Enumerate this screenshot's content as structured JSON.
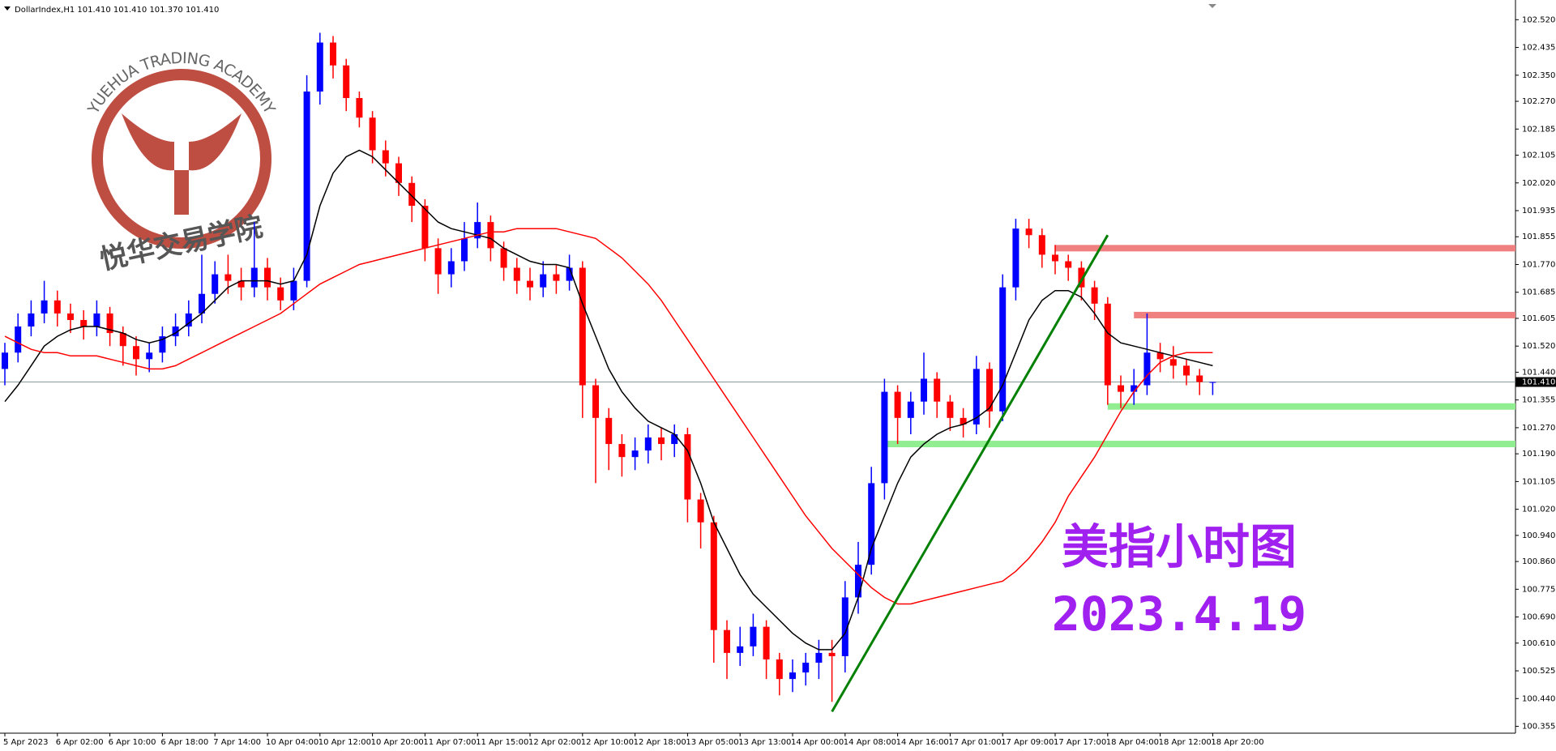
{
  "chart_data": {
    "type": "candlestick",
    "header": "DollarIndex,H1  101.410 101.410 101.370 101.410",
    "annotations": [
      "美指小时图",
      "2023.4.19"
    ],
    "logo": {
      "arc_text": "YUEHUA TRADING ACADEMY",
      "name": "悦华交易学院"
    },
    "bull_color": "#0000ff",
    "bear_color": "#ff0000",
    "categories": [
      "5 Apr 2023",
      null,
      null,
      null,
      "6 Apr 02:00",
      null,
      null,
      null,
      "6 Apr 10:00",
      null,
      null,
      null,
      "6 Apr 18:00",
      null,
      null,
      null,
      "7 Apr 14:00",
      null,
      null,
      null,
      "10 Apr 04:00",
      null,
      null,
      null,
      "10 Apr 12:00",
      null,
      null,
      null,
      "10 Apr 20:00",
      null,
      null,
      null,
      "11 Apr 07:00",
      null,
      null,
      null,
      "11 Apr 15:00",
      null,
      null,
      null,
      "12 Apr 02:00",
      null,
      null,
      null,
      "12 Apr 10:00",
      null,
      null,
      null,
      "12 Apr 18:00",
      null,
      null,
      null,
      "13 Apr 05:00",
      null,
      null,
      null,
      "13 Apr 13:00",
      null,
      null,
      null,
      "14 Apr 00:00",
      null,
      null,
      null,
      "14 Apr 08:00",
      null,
      null,
      null,
      "14 Apr 16:00",
      null,
      null,
      null,
      "17 Apr 01:00",
      null,
      null,
      null,
      "17 Apr 09:00",
      null,
      null,
      null,
      "17 Apr 17:00",
      null,
      null,
      null,
      "18 Apr 04:00",
      null,
      null,
      null,
      "18 Apr 12:00",
      null,
      null,
      null,
      "18 Apr 20:00"
    ],
    "open": [
      101.45,
      101.5,
      101.58,
      101.62,
      101.66,
      101.62,
      101.6,
      101.58,
      101.62,
      101.56,
      101.52,
      101.48,
      101.5,
      101.55,
      101.58,
      101.62,
      101.68,
      101.74,
      101.72,
      101.7,
      101.76,
      101.7,
      101.66,
      101.72,
      102.3,
      102.45,
      102.38,
      102.28,
      102.22,
      102.12,
      102.08,
      102.02,
      101.95,
      101.82,
      101.74,
      101.78,
      101.85,
      101.9,
      101.82,
      101.76,
      101.72,
      101.7,
      101.74,
      101.72,
      101.76,
      101.4,
      101.3,
      101.22,
      101.18,
      101.2,
      101.24,
      101.22,
      101.25,
      101.05,
      100.98,
      100.65,
      100.58,
      100.6,
      100.66,
      100.56,
      100.5,
      100.52,
      100.55,
      100.58,
      100.57,
      100.75,
      100.85,
      101.1,
      101.38,
      101.3,
      101.35,
      101.42,
      101.35,
      101.3,
      101.28,
      101.45,
      101.32,
      101.7,
      101.88,
      101.86,
      101.8,
      101.78,
      101.76,
      101.7,
      101.65,
      101.4,
      101.38,
      101.4,
      101.5,
      101.48,
      101.46,
      101.43,
      101.41
    ],
    "high": [
      101.53,
      101.62,
      101.66,
      101.72,
      101.69,
      101.65,
      101.63,
      101.66,
      101.64,
      101.58,
      101.55,
      101.53,
      101.58,
      101.62,
      101.66,
      101.8,
      101.78,
      101.8,
      101.76,
      101.9,
      101.79,
      101.73,
      101.76,
      102.35,
      102.48,
      102.47,
      102.4,
      102.3,
      102.24,
      102.15,
      102.1,
      102.04,
      101.97,
      101.85,
      101.82,
      101.9,
      101.96,
      101.92,
      101.84,
      101.79,
      101.76,
      101.78,
      101.77,
      101.8,
      101.78,
      101.42,
      101.33,
      101.25,
      101.24,
      101.28,
      101.27,
      101.28,
      101.27,
      101.07,
      101.0,
      100.68,
      100.66,
      100.7,
      100.68,
      100.58,
      100.56,
      100.58,
      100.62,
      100.62,
      100.8,
      100.92,
      101.15,
      101.42,
      101.4,
      101.38,
      101.5,
      101.44,
      101.37,
      101.33,
      101.49,
      101.47,
      101.74,
      101.91,
      101.91,
      101.88,
      101.83,
      101.8,
      101.78,
      101.72,
      101.67,
      101.43,
      101.45,
      101.62,
      101.53,
      101.52,
      101.48,
      101.45,
      101.41
    ],
    "low": [
      101.4,
      101.47,
      101.55,
      101.59,
      101.58,
      101.56,
      101.54,
      101.55,
      101.52,
      101.46,
      101.43,
      101.44,
      101.47,
      101.52,
      101.55,
      101.59,
      101.65,
      101.68,
      101.66,
      101.67,
      101.66,
      101.63,
      101.63,
      101.7,
      102.26,
      102.34,
      102.24,
      102.19,
      102.08,
      102.04,
      101.98,
      101.9,
      101.78,
      101.68,
      101.7,
      101.75,
      101.82,
      101.78,
      101.72,
      101.68,
      101.66,
      101.67,
      101.68,
      101.69,
      101.3,
      101.1,
      101.14,
      101.12,
      101.14,
      101.16,
      101.17,
      101.18,
      100.98,
      100.9,
      100.55,
      100.5,
      100.54,
      100.57,
      100.5,
      100.45,
      100.46,
      100.48,
      100.5,
      100.43,
      100.52,
      100.7,
      100.82,
      101.05,
      101.22,
      101.25,
      101.31,
      101.3,
      101.26,
      101.24,
      101.25,
      101.27,
      101.29,
      101.66,
      101.82,
      101.76,
      101.74,
      101.72,
      101.66,
      101.6,
      101.34,
      101.33,
      101.34,
      101.37,
      101.44,
      101.42,
      101.4,
      101.37,
      101.37
    ],
    "close": [
      101.5,
      101.58,
      101.62,
      101.66,
      101.62,
      101.6,
      101.58,
      101.62,
      101.56,
      101.52,
      101.48,
      101.5,
      101.55,
      101.58,
      101.62,
      101.68,
      101.74,
      101.72,
      101.7,
      101.76,
      101.7,
      101.66,
      101.72,
      102.3,
      102.45,
      102.38,
      102.28,
      102.22,
      102.12,
      102.08,
      102.02,
      101.95,
      101.82,
      101.74,
      101.78,
      101.85,
      101.9,
      101.82,
      101.76,
      101.72,
      101.7,
      101.74,
      101.72,
      101.76,
      101.4,
      101.3,
      101.22,
      101.18,
      101.2,
      101.24,
      101.22,
      101.25,
      101.05,
      100.98,
      100.65,
      100.58,
      100.6,
      100.66,
      100.56,
      100.5,
      100.52,
      100.55,
      100.58,
      100.57,
      100.75,
      100.85,
      101.1,
      101.38,
      101.3,
      101.35,
      101.42,
      101.35,
      101.3,
      101.28,
      101.45,
      101.32,
      101.7,
      101.88,
      101.86,
      101.8,
      101.78,
      101.76,
      101.7,
      101.65,
      101.4,
      101.38,
      101.4,
      101.5,
      101.48,
      101.46,
      101.43,
      101.41,
      101.41
    ],
    "series": [
      {
        "color": "#000000",
        "values": [
          101.35,
          101.4,
          101.46,
          101.52,
          101.55,
          101.57,
          101.58,
          101.58,
          101.57,
          101.56,
          101.54,
          101.53,
          101.54,
          101.56,
          101.59,
          101.62,
          101.66,
          101.7,
          101.72,
          101.72,
          101.72,
          101.71,
          101.72,
          101.8,
          101.95,
          102.05,
          102.1,
          102.12,
          102.1,
          102.06,
          102.02,
          101.98,
          101.94,
          101.9,
          101.88,
          101.87,
          101.86,
          101.85,
          101.82,
          101.8,
          101.78,
          101.77,
          101.77,
          101.76,
          101.65,
          101.55,
          101.45,
          101.38,
          101.33,
          101.29,
          101.27,
          101.25,
          101.2,
          101.1,
          100.98,
          100.9,
          100.82,
          100.76,
          100.72,
          100.68,
          100.64,
          100.61,
          100.59,
          100.59,
          100.64,
          100.75,
          100.9,
          101.0,
          101.1,
          101.18,
          101.22,
          101.25,
          101.27,
          101.28,
          101.3,
          101.33,
          101.4,
          101.5,
          101.6,
          101.66,
          101.69,
          101.69,
          101.67,
          101.62,
          101.56,
          101.53,
          101.52,
          101.51,
          101.5,
          101.49,
          101.48,
          101.47,
          101.46
        ]
      },
      {
        "color": "#ff0000",
        "values": [
          101.55,
          101.53,
          101.51,
          101.5,
          101.5,
          101.49,
          101.49,
          101.49,
          101.48,
          101.47,
          101.46,
          101.45,
          101.45,
          101.46,
          101.48,
          101.5,
          101.52,
          101.54,
          101.56,
          101.58,
          101.6,
          101.62,
          101.65,
          101.68,
          101.71,
          101.73,
          101.75,
          101.77,
          101.78,
          101.79,
          101.8,
          101.81,
          101.82,
          101.83,
          101.84,
          101.85,
          101.86,
          101.87,
          101.87,
          101.88,
          101.88,
          101.88,
          101.88,
          101.87,
          101.86,
          101.85,
          101.82,
          101.79,
          101.75,
          101.71,
          101.66,
          101.6,
          101.54,
          101.48,
          101.42,
          101.36,
          101.3,
          101.24,
          101.18,
          101.12,
          101.06,
          101.0,
          100.95,
          100.9,
          100.86,
          100.82,
          100.78,
          100.75,
          100.73,
          100.73,
          100.74,
          100.75,
          100.76,
          100.77,
          100.78,
          100.79,
          100.8,
          100.83,
          100.87,
          100.92,
          100.98,
          101.06,
          101.12,
          101.18,
          101.25,
          101.32,
          101.38,
          101.43,
          101.47,
          101.49,
          101.5,
          101.5,
          101.5
        ]
      }
    ],
    "levels": [
      {
        "value": 101.82,
        "from": 80,
        "color": "#f08080"
      },
      {
        "value": 101.615,
        "from": 86,
        "color": "#f08080"
      },
      {
        "value": 101.335,
        "from": 84,
        "color": "#90ee90"
      },
      {
        "value": 101.22,
        "from": 67,
        "color": "#90ee90"
      }
    ],
    "trendline": {
      "x": [
        63,
        84
      ],
      "y": [
        100.4,
        101.86
      ],
      "color": "#008000"
    },
    "current_price": {
      "value": 101.41,
      "label": "101.410"
    },
    "ylim": [
      100.334,
      102.568
    ],
    "yticks": [
      100.355,
      {
        "value": 100.44,
        "label": "100.440"
      },
      100.525,
      {
        "value": 100.61,
        "label": "100.610"
      },
      {
        "value": 100.69,
        "label": "100.690"
      },
      100.775,
      {
        "value": 100.86,
        "label": "100.860"
      },
      {
        "value": 100.94,
        "label": "100.940"
      },
      {
        "value": 101.02,
        "label": "101.020"
      },
      101.105,
      {
        "value": 101.19,
        "label": "101.190"
      },
      {
        "value": 101.27,
        "label": "101.270"
      },
      101.355,
      {
        "value": 101.44,
        "label": "101.440"
      },
      {
        "value": 101.52,
        "label": "101.520"
      },
      101.605,
      101.685,
      {
        "value": 101.77,
        "label": "101.770"
      },
      101.855,
      101.935,
      {
        "value": 102.02,
        "label": "102.020"
      },
      102.105,
      102.185,
      {
        "value": 102.27,
        "label": "102.270"
      },
      {
        "value": 102.35,
        "label": "102.350"
      },
      102.435,
      {
        "value": 102.52,
        "label": "102.520"
      }
    ]
  }
}
